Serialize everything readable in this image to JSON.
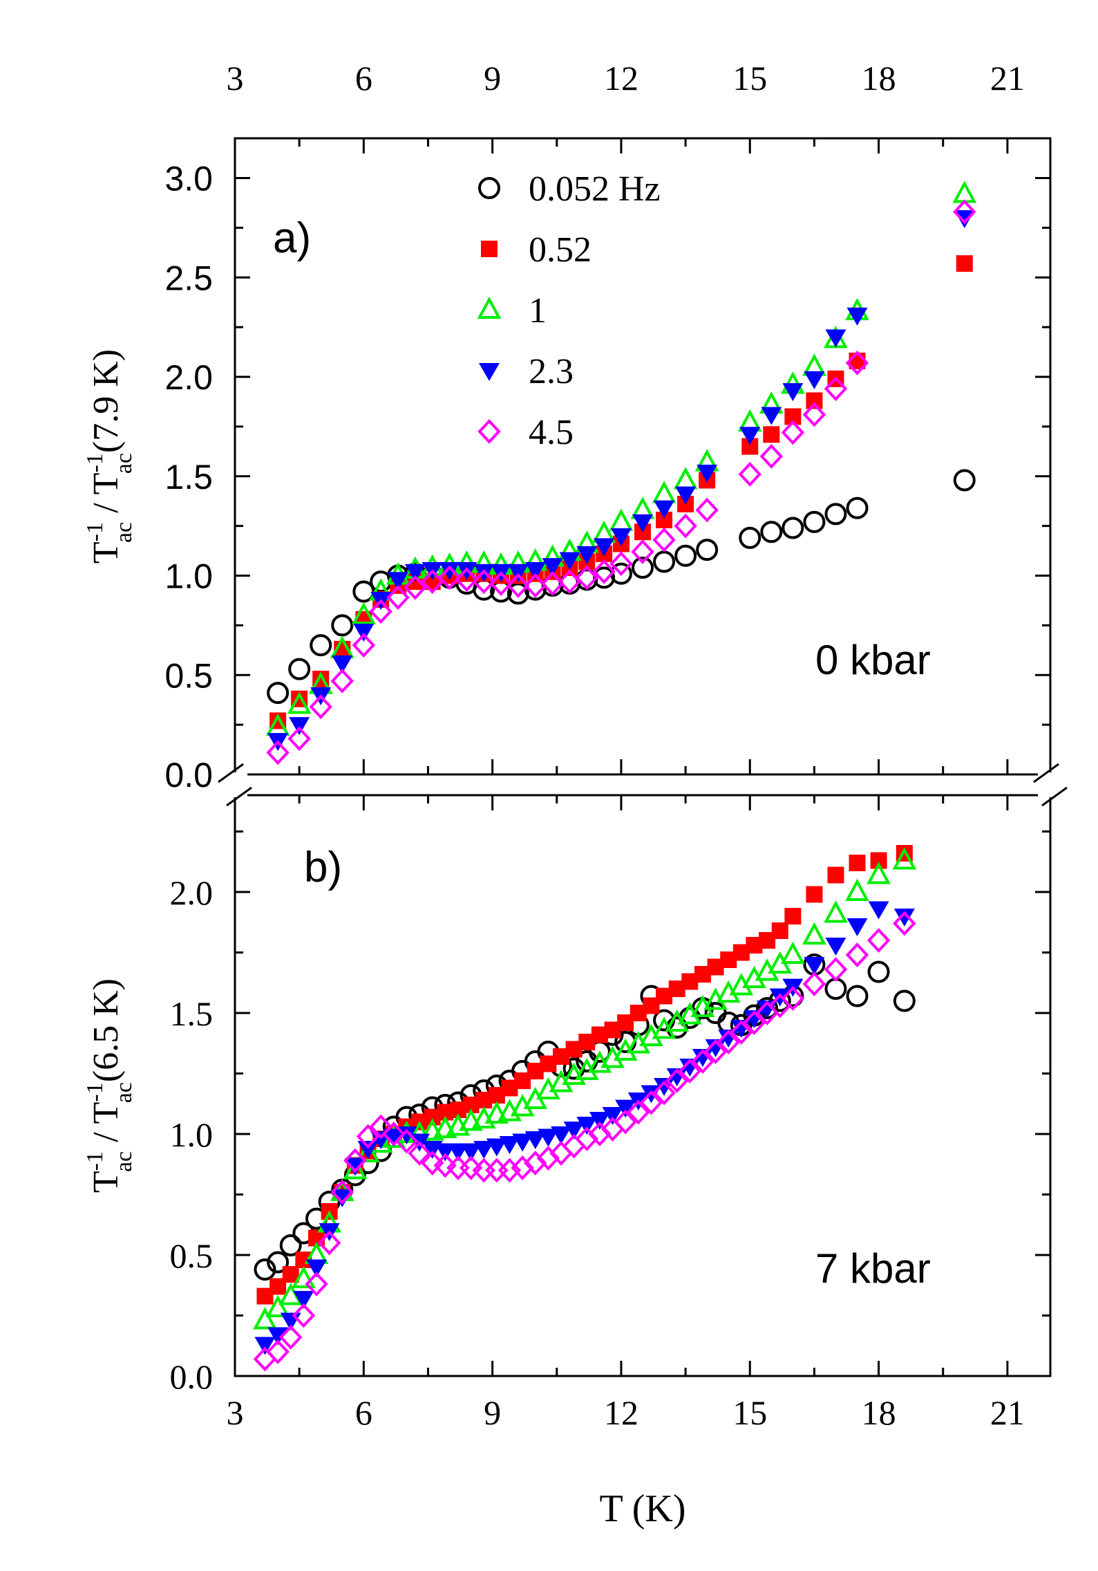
{
  "chart_data": [
    {
      "type": "scatter",
      "panel_label": "a)",
      "annotation": "0 kbar",
      "ylabel_parts": {
        "main1": "T",
        "sup1": "-1",
        "sub1": "ac",
        "sep": " / ",
        "main2": "T",
        "sup2": "-1",
        "sub2": "ac",
        "tail": "(7.9 K)"
      },
      "xlim": [
        3,
        22
      ],
      "ylim": [
        0,
        3.2
      ],
      "xticks": [
        3,
        6,
        9,
        12,
        15,
        18,
        21
      ],
      "xtick_labels": [
        "3",
        "6",
        "9",
        "12",
        "15",
        "18",
        "21"
      ],
      "yticks": [
        0,
        0.5,
        1,
        1.5,
        2,
        2.5,
        3
      ],
      "ytick_labels": [
        "0.0",
        "0.5",
        "1.0",
        "1.5",
        "2.0",
        "2.5",
        "3.0"
      ],
      "legend": {
        "position": "top-center",
        "entries": [
          "0.052 Hz",
          "0.52",
          "1",
          "2.3",
          "4.5"
        ]
      },
      "series": [
        {
          "name": "0.052 Hz",
          "marker": "open-circle",
          "color": "#000000",
          "x": [
            4.0,
            4.5,
            5.0,
            5.5,
            6.0,
            6.4,
            6.8,
            7.2,
            7.6,
            8.0,
            8.4,
            8.8,
            9.2,
            9.6,
            10.0,
            10.4,
            10.8,
            11.2,
            11.6,
            12.0,
            12.5,
            13.0,
            13.5,
            14.0,
            15.0,
            15.5,
            16.0,
            16.5,
            17.0,
            17.5,
            20.0
          ],
          "y": [
            0.41,
            0.53,
            0.65,
            0.75,
            0.92,
            0.97,
            1.0,
            1.01,
            1.0,
            0.99,
            0.96,
            0.93,
            0.92,
            0.91,
            0.93,
            0.95,
            0.96,
            0.98,
            0.99,
            1.01,
            1.04,
            1.07,
            1.1,
            1.13,
            1.19,
            1.22,
            1.24,
            1.27,
            1.31,
            1.34,
            1.48
          ]
        },
        {
          "name": "0.52",
          "marker": "filled-square",
          "color": "#ff0000",
          "x": [
            4.0,
            4.5,
            5.0,
            5.5,
            6.0,
            6.4,
            6.8,
            7.2,
            7.6,
            8.0,
            8.4,
            8.8,
            9.2,
            9.6,
            10.0,
            10.4,
            10.8,
            11.2,
            11.6,
            12.0,
            12.5,
            13.0,
            13.5,
            14.0,
            15.0,
            15.5,
            16.0,
            16.5,
            17.0,
            17.5,
            20.0
          ],
          "y": [
            0.27,
            0.38,
            0.48,
            0.63,
            0.78,
            0.88,
            0.95,
            0.97,
            0.97,
            1.0,
            1.01,
            1.01,
            1.0,
            1.0,
            1.01,
            1.02,
            1.04,
            1.07,
            1.11,
            1.16,
            1.22,
            1.28,
            1.36,
            1.48,
            1.65,
            1.71,
            1.8,
            1.88,
            1.99,
            2.08,
            2.57
          ]
        },
        {
          "name": "1",
          "marker": "open-triangle-up",
          "color": "#00ee00",
          "x": [
            4.0,
            4.5,
            5.0,
            5.5,
            6.0,
            6.4,
            6.8,
            7.2,
            7.6,
            8.0,
            8.4,
            8.8,
            9.2,
            9.6,
            10.0,
            10.4,
            10.8,
            11.2,
            11.6,
            12.0,
            12.5,
            13.0,
            13.5,
            14.0,
            15.0,
            15.5,
            16.0,
            16.5,
            17.0,
            17.5,
            20.0
          ],
          "y": [
            0.24,
            0.35,
            0.45,
            0.63,
            0.8,
            0.92,
            1.0,
            1.03,
            1.04,
            1.05,
            1.06,
            1.06,
            1.05,
            1.06,
            1.07,
            1.09,
            1.12,
            1.16,
            1.21,
            1.27,
            1.33,
            1.41,
            1.48,
            1.57,
            1.77,
            1.86,
            1.96,
            2.05,
            2.19,
            2.33,
            2.92
          ]
        },
        {
          "name": "2.3",
          "marker": "filled-triangle-down",
          "color": "#0000ff",
          "x": [
            4.0,
            4.5,
            5.0,
            5.5,
            6.0,
            6.4,
            6.8,
            7.2,
            7.6,
            8.0,
            8.4,
            8.8,
            9.2,
            9.6,
            10.0,
            10.4,
            10.8,
            11.2,
            11.6,
            12.0,
            12.5,
            13.0,
            13.5,
            14.0,
            15.0,
            15.5,
            16.0,
            16.5,
            17.0,
            17.5,
            20.0
          ],
          "y": [
            0.17,
            0.25,
            0.4,
            0.56,
            0.72,
            0.88,
            0.98,
            1.02,
            1.03,
            1.03,
            1.03,
            1.02,
            1.02,
            1.02,
            1.03,
            1.05,
            1.08,
            1.11,
            1.15,
            1.2,
            1.27,
            1.34,
            1.41,
            1.52,
            1.71,
            1.81,
            1.93,
            1.99,
            2.2,
            2.31,
            2.8
          ]
        },
        {
          "name": "4.5",
          "marker": "open-diamond",
          "color": "#ff00ff",
          "x": [
            4.0,
            4.5,
            5.0,
            5.5,
            6.0,
            6.4,
            6.8,
            7.2,
            7.6,
            8.0,
            8.4,
            8.8,
            9.2,
            9.6,
            10.0,
            10.4,
            10.8,
            11.2,
            11.6,
            12.0,
            12.5,
            13.0,
            13.5,
            14.0,
            15.0,
            15.5,
            16.0,
            16.5,
            17.0,
            17.5,
            20.0
          ],
          "y": [
            0.11,
            0.18,
            0.34,
            0.47,
            0.65,
            0.82,
            0.89,
            0.94,
            0.97,
            0.99,
            0.98,
            0.97,
            0.96,
            0.95,
            0.95,
            0.96,
            0.97,
            0.99,
            1.02,
            1.06,
            1.12,
            1.18,
            1.25,
            1.33,
            1.51,
            1.6,
            1.72,
            1.81,
            1.94,
            2.07,
            2.83
          ]
        }
      ]
    },
    {
      "type": "scatter",
      "panel_label": "b)",
      "annotation": "7 kbar",
      "ylabel_parts": {
        "main1": "T",
        "sup1": "-1",
        "sub1": "ac",
        "sep": " / ",
        "main2": "T",
        "sup2": "-1",
        "sub2": "ac",
        "tail": "(6.5 K)"
      },
      "xlabel": "T (K)",
      "xlim": [
        3,
        22
      ],
      "ylim": [
        0,
        2.4
      ],
      "xticks": [
        3,
        6,
        9,
        12,
        15,
        18,
        21
      ],
      "xtick_labels": [
        "3",
        "6",
        "9",
        "12",
        "15",
        "18",
        "21"
      ],
      "yticks": [
        0,
        0.5,
        1,
        1.5,
        2
      ],
      "ytick_labels": [
        "0.0",
        "0.5",
        "1.0",
        "1.5",
        "2.0"
      ],
      "series": [
        {
          "name": "0.052 Hz",
          "marker": "open-circle",
          "color": "#000000",
          "x": [
            3.7,
            4.0,
            4.3,
            4.6,
            4.9,
            5.2,
            5.5,
            5.8,
            6.1,
            6.4,
            6.7,
            7.0,
            7.3,
            7.6,
            7.9,
            8.2,
            8.5,
            8.8,
            9.1,
            9.4,
            9.7,
            10.0,
            10.3,
            10.6,
            10.9,
            11.2,
            11.5,
            11.8,
            12.1,
            12.4,
            12.7,
            13.0,
            13.3,
            13.6,
            13.9,
            14.2,
            14.5,
            14.8,
            15.1,
            15.4,
            15.7,
            16.0,
            16.5,
            17.0,
            17.5,
            18.0,
            18.6
          ],
          "y": [
            0.44,
            0.47,
            0.54,
            0.59,
            0.65,
            0.72,
            0.77,
            0.83,
            0.88,
            0.93,
            1.03,
            1.07,
            1.08,
            1.11,
            1.12,
            1.13,
            1.16,
            1.18,
            1.2,
            1.22,
            1.26,
            1.3,
            1.34,
            1.28,
            1.27,
            1.3,
            1.34,
            1.41,
            1.38,
            1.45,
            1.57,
            1.47,
            1.44,
            1.48,
            1.52,
            1.5,
            1.46,
            1.45,
            1.49,
            1.52,
            1.55,
            1.57,
            1.7,
            1.6,
            1.57,
            1.67,
            1.55
          ]
        },
        {
          "name": "0.52",
          "marker": "filled-square",
          "color": "#ff0000",
          "x": [
            3.7,
            4.0,
            4.3,
            4.6,
            4.9,
            5.2,
            5.5,
            5.8,
            6.1,
            6.4,
            6.7,
            7.0,
            7.3,
            7.6,
            7.9,
            8.2,
            8.5,
            8.8,
            9.1,
            9.4,
            9.7,
            10.0,
            10.3,
            10.6,
            10.9,
            11.2,
            11.5,
            11.8,
            12.1,
            12.4,
            12.7,
            13.0,
            13.3,
            13.6,
            13.9,
            14.2,
            14.5,
            14.8,
            15.1,
            15.4,
            15.7,
            16.0,
            16.5,
            17.0,
            17.5,
            18.0,
            18.6
          ],
          "y": [
            0.33,
            0.37,
            0.42,
            0.48,
            0.57,
            0.68,
            0.76,
            0.87,
            0.93,
            0.98,
            1.0,
            1.03,
            1.05,
            1.07,
            1.09,
            1.1,
            1.12,
            1.14,
            1.16,
            1.19,
            1.22,
            1.26,
            1.29,
            1.32,
            1.35,
            1.38,
            1.41,
            1.43,
            1.46,
            1.5,
            1.53,
            1.57,
            1.6,
            1.63,
            1.66,
            1.69,
            1.72,
            1.75,
            1.78,
            1.8,
            1.84,
            1.9,
            1.99,
            2.07,
            2.12,
            2.13,
            2.16
          ]
        },
        {
          "name": "1",
          "marker": "open-triangle-up",
          "color": "#00ee00",
          "x": [
            3.7,
            4.0,
            4.3,
            4.6,
            4.9,
            5.2,
            5.5,
            5.8,
            6.1,
            6.4,
            6.7,
            7.0,
            7.3,
            7.6,
            7.9,
            8.2,
            8.5,
            8.8,
            9.1,
            9.4,
            9.7,
            10.0,
            10.3,
            10.6,
            10.9,
            11.2,
            11.5,
            11.8,
            12.1,
            12.4,
            12.7,
            13.0,
            13.3,
            13.6,
            13.9,
            14.2,
            14.5,
            14.8,
            15.1,
            15.4,
            15.7,
            16.0,
            16.5,
            17.0,
            17.5,
            18.0,
            18.6
          ],
          "y": [
            0.23,
            0.28,
            0.33,
            0.4,
            0.5,
            0.63,
            0.76,
            0.85,
            0.92,
            0.96,
            0.98,
            1.0,
            1.0,
            1.01,
            1.02,
            1.03,
            1.05,
            1.06,
            1.08,
            1.09,
            1.11,
            1.14,
            1.18,
            1.21,
            1.24,
            1.26,
            1.29,
            1.31,
            1.34,
            1.37,
            1.4,
            1.43,
            1.46,
            1.49,
            1.52,
            1.55,
            1.58,
            1.61,
            1.64,
            1.67,
            1.7,
            1.74,
            1.82,
            1.91,
            2.0,
            2.07,
            2.13
          ]
        },
        {
          "name": "2.3",
          "marker": "filled-triangle-down",
          "color": "#0000ff",
          "x": [
            3.7,
            4.0,
            4.3,
            4.6,
            4.9,
            5.2,
            5.5,
            5.8,
            6.1,
            6.4,
            6.7,
            7.0,
            7.3,
            7.6,
            7.9,
            8.2,
            8.5,
            8.8,
            9.1,
            9.4,
            9.7,
            10.0,
            10.3,
            10.6,
            10.9,
            11.2,
            11.5,
            11.8,
            12.1,
            12.4,
            12.7,
            13.0,
            13.3,
            13.6,
            13.9,
            14.2,
            14.5,
            14.8,
            15.1,
            15.4,
            15.7,
            16.0,
            16.5,
            17.0,
            17.5,
            18.0,
            18.6
          ],
          "y": [
            0.13,
            0.17,
            0.23,
            0.32,
            0.45,
            0.6,
            0.74,
            0.87,
            0.94,
            0.98,
            0.99,
            1.0,
            0.97,
            0.94,
            0.93,
            0.93,
            0.93,
            0.94,
            0.95,
            0.96,
            0.97,
            0.98,
            0.99,
            1.0,
            1.02,
            1.04,
            1.06,
            1.08,
            1.11,
            1.14,
            1.17,
            1.2,
            1.24,
            1.28,
            1.32,
            1.36,
            1.4,
            1.44,
            1.48,
            1.52,
            1.57,
            1.61,
            1.7,
            1.78,
            1.86,
            1.93,
            1.9
          ]
        },
        {
          "name": "4.5",
          "marker": "open-diamond",
          "color": "#ff00ff",
          "x": [
            3.7,
            4.0,
            4.3,
            4.6,
            4.9,
            5.2,
            5.5,
            5.8,
            6.1,
            6.4,
            6.7,
            7.0,
            7.3,
            7.6,
            7.9,
            8.2,
            8.5,
            8.8,
            9.1,
            9.4,
            9.7,
            10.0,
            10.3,
            10.6,
            10.9,
            11.2,
            11.5,
            11.8,
            12.1,
            12.4,
            12.7,
            13.0,
            13.3,
            13.6,
            13.9,
            14.2,
            14.5,
            14.8,
            15.1,
            15.4,
            15.7,
            16.0,
            16.5,
            17.0,
            17.5,
            18.0,
            18.6
          ],
          "y": [
            0.07,
            0.1,
            0.16,
            0.25,
            0.38,
            0.55,
            0.76,
            0.89,
            0.99,
            1.03,
            1.0,
            0.97,
            0.92,
            0.88,
            0.87,
            0.86,
            0.86,
            0.85,
            0.85,
            0.85,
            0.86,
            0.88,
            0.9,
            0.92,
            0.95,
            0.98,
            1.0,
            1.02,
            1.05,
            1.09,
            1.13,
            1.17,
            1.22,
            1.26,
            1.3,
            1.34,
            1.38,
            1.42,
            1.46,
            1.5,
            1.53,
            1.56,
            1.62,
            1.68,
            1.74,
            1.8,
            1.87
          ]
        }
      ]
    }
  ]
}
